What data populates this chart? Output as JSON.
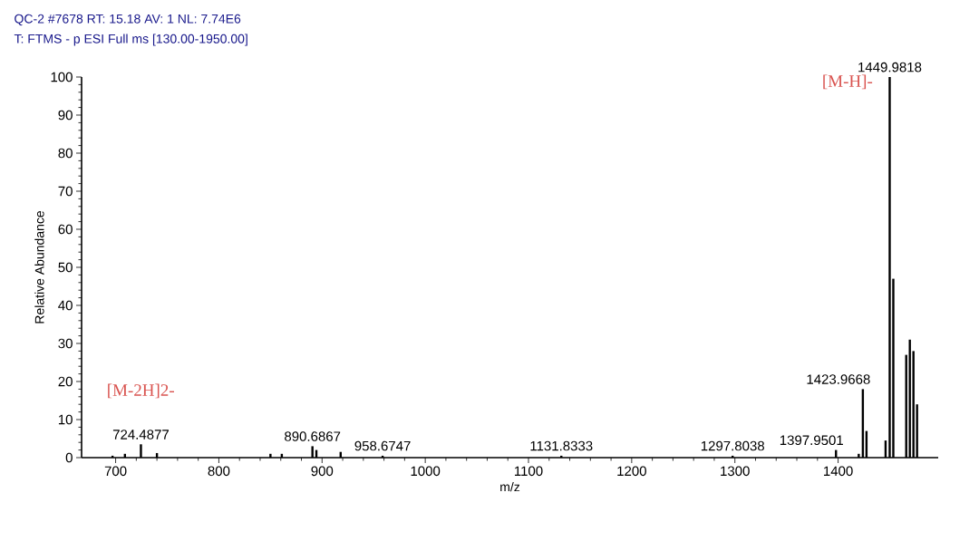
{
  "chart_data": {
    "type": "bar",
    "title": "QC-2 #7678  RT: 15.18  AV: 1  NL: 7.74E6",
    "subtitle": "T: FTMS - p ESI Full ms [130.00-1950.00]",
    "xlabel": "m/z",
    "ylabel": "Relative Abundance",
    "color": "#000000",
    "x": [
      697,
      709,
      724.4877,
      740,
      850,
      861,
      890.6867,
      894.5,
      918,
      958.6747,
      1131.8333,
      1297.8038,
      1397.9501,
      1420,
      1423.9668,
      1427.5,
      1446,
      1449.9818,
      1453.5,
      1466,
      1469.5,
      1473,
      1476.5
    ],
    "values": [
      0.5,
      1,
      3.5,
      1.2,
      1,
      1,
      3,
      2,
      1.5,
      0.5,
      0.5,
      0.5,
      2,
      1,
      18,
      7,
      4.5,
      100,
      47,
      27,
      31,
      28,
      14
    ],
    "xlim": [
      667,
      1497
    ],
    "xticks": [
      700,
      800,
      900,
      1000,
      1100,
      1200,
      1300,
      1400
    ],
    "ylim": [
      0,
      100
    ],
    "yticks": [
      0,
      10,
      20,
      30,
      40,
      50,
      60,
      70,
      80,
      90,
      100
    ],
    "annotations": [
      "[M-H]-",
      "[M-2H]2-",
      {
        "text": "724.4877",
        "x": 724.4877,
        "y": 3.5
      },
      {
        "text": "890.6867",
        "x": 890.6867,
        "y": 3
      },
      {
        "text": "958.6747",
        "x": 958.6747,
        "y": 0.5
      },
      {
        "text": "1131.8333",
        "x": 1131.8333,
        "y": 0.5
      },
      {
        "text": "1297.8038",
        "x": 1297.8038,
        "y": 0.5
      },
      {
        "text": "1397.9501",
        "x": 1397.9501,
        "y": 2
      },
      {
        "text": "1423.9668",
        "x": 1423.9668,
        "y": 18
      },
      {
        "text": "1449.9818",
        "x": 1449.9818,
        "y": 100
      }
    ]
  }
}
